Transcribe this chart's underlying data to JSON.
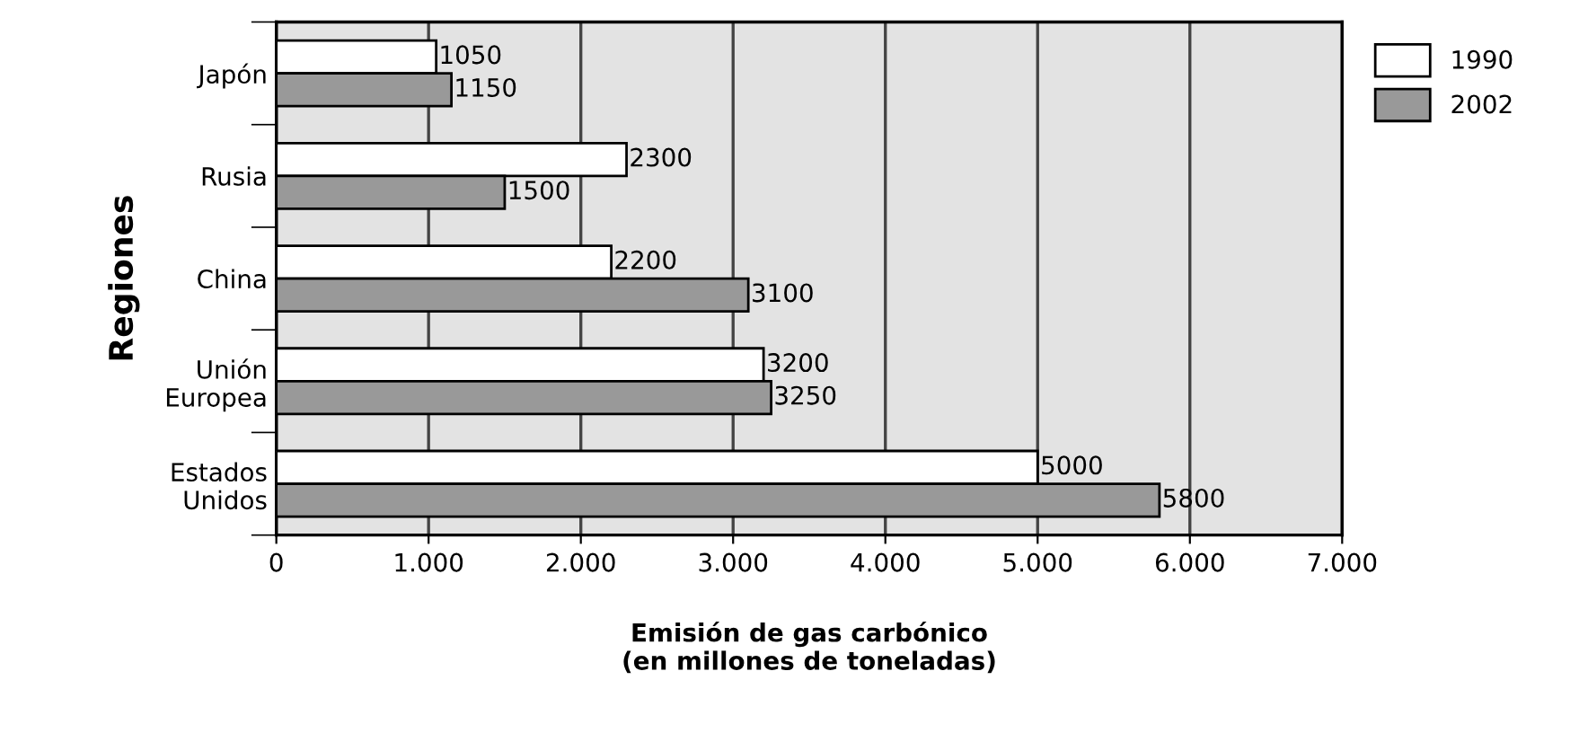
{
  "chart_data": {
    "type": "bar",
    "orientation": "horizontal",
    "ylabel": "Regiones",
    "xlabel": "Emisión de gas carbónico\n(en millones de toneladas)",
    "categories": [
      "Japón",
      "Rusia",
      "China",
      "Unión\nEuropea",
      "Estados\nUnidos"
    ],
    "series": [
      {
        "name": "1990",
        "color": "#ffffff",
        "values": [
          1050,
          2300,
          2200,
          3200,
          5000
        ]
      },
      {
        "name": "2002",
        "color": "#999999",
        "values": [
          1150,
          1500,
          3100,
          3250,
          5800
        ]
      }
    ],
    "xlim": [
      0,
      7000
    ],
    "xticks": [
      0,
      {
        "value": 1000,
        "label": "1.000"
      },
      {
        "value": 2000,
        "label": "2.000"
      },
      {
        "value": 3000,
        "label": "3.000"
      },
      {
        "value": 4000,
        "label": "4.000"
      },
      {
        "value": 5000,
        "label": "5.000"
      },
      {
        "value": 6000,
        "label": "6.000"
      },
      {
        "value": 7000,
        "label": "7.000"
      }
    ],
    "grid": "x",
    "legend": "top right",
    "data_labels": true
  }
}
